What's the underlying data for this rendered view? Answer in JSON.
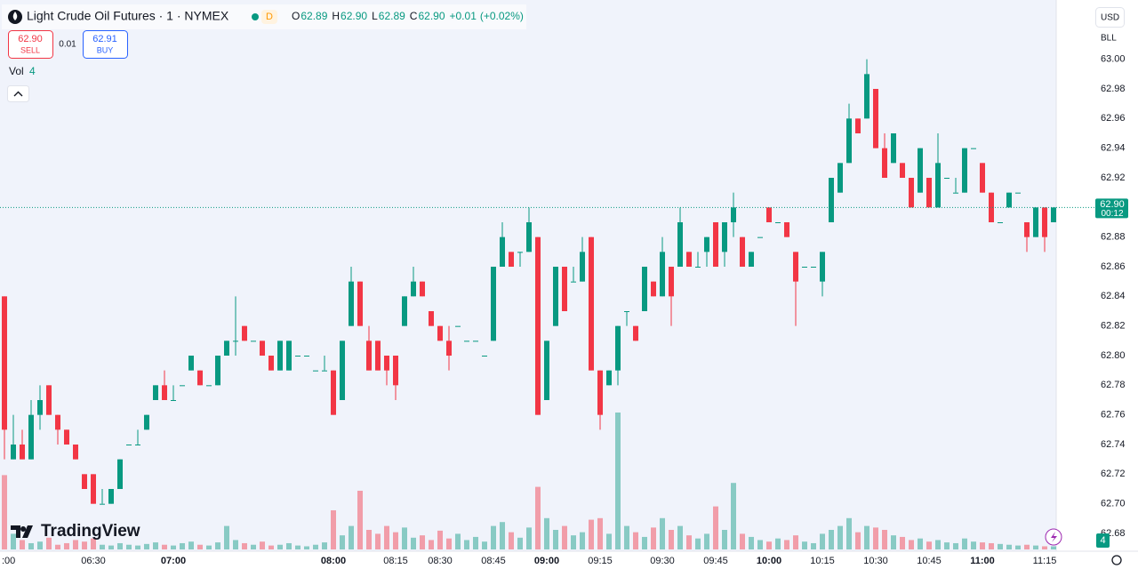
{
  "header": {
    "symbol": "Light Crude Oil Futures · 1 · NYMEX",
    "badge": "D",
    "ohlc": [
      {
        "label": "O",
        "value": "62.89"
      },
      {
        "label": "H",
        "value": "62.90"
      },
      {
        "label": "L",
        "value": "62.89"
      },
      {
        "label": "C",
        "value": "62.90"
      }
    ],
    "change": "+0.01",
    "change_pct": "(+0.02%)",
    "sell": {
      "price": "62.90",
      "label": "SELL"
    },
    "spread": "0.01",
    "buy": {
      "price": "62.91",
      "label": "BUY"
    },
    "currency": "USD",
    "unit": "BLL",
    "logo": "TradingView"
  },
  "chart_data": {
    "type": "candlestick",
    "categories": [
      ":00",
      null,
      null,
      null,
      null,
      null,
      null,
      null,
      null,
      null,
      "06:30",
      null,
      null,
      null,
      null,
      null,
      null,
      null,
      null,
      "07:00",
      null,
      null,
      null,
      null,
      null,
      null,
      null,
      null,
      null,
      null,
      null,
      null,
      null,
      null,
      null,
      null,
      null,
      "08:00",
      null,
      null,
      null,
      null,
      null,
      null,
      "08:15",
      null,
      null,
      null,
      null,
      "08:30",
      null,
      null,
      null,
      null,
      null,
      "08:45",
      null,
      null,
      null,
      null,
      null,
      "09:00",
      null,
      null,
      null,
      null,
      null,
      "09:15",
      null,
      null,
      null,
      null,
      null,
      null,
      "09:30",
      null,
      null,
      null,
      null,
      null,
      "09:45",
      null,
      null,
      null,
      null,
      null,
      "10:00",
      null,
      null,
      null,
      null,
      null,
      "10:15",
      null,
      null,
      null,
      null,
      null,
      "10:30",
      null,
      null,
      null,
      null,
      null,
      "10:45",
      null,
      null,
      null,
      null,
      null,
      "11:00",
      null,
      null,
      null,
      null,
      null,
      null,
      "11:15",
      null
    ],
    "open": [
      62.84,
      62.73,
      62.74,
      62.73,
      62.76,
      62.78,
      62.76,
      62.75,
      62.74,
      62.72,
      62.72,
      62.7,
      62.7,
      62.71,
      62.74,
      62.74,
      62.75,
      62.77,
      62.78,
      62.77,
      62.78,
      62.79,
      62.79,
      62.78,
      62.78,
      62.8,
      62.81,
      62.82,
      62.81,
      62.81,
      62.8,
      62.79,
      62.79,
      62.8,
      62.8,
      62.79,
      62.79,
      62.79,
      62.77,
      62.82,
      62.85,
      62.81,
      62.81,
      62.8,
      62.8,
      62.82,
      62.84,
      62.85,
      62.83,
      62.82,
      62.81,
      62.82,
      62.81,
      62.81,
      62.8,
      62.81,
      62.86,
      62.87,
      62.87,
      62.87,
      62.88,
      62.77,
      62.82,
      62.86,
      62.85,
      62.85,
      62.88,
      62.79,
      62.78,
      62.79,
      62.83,
      62.82,
      62.83,
      62.85,
      62.84,
      62.86,
      62.86,
      62.87,
      62.86,
      62.87,
      62.89,
      62.87,
      62.89,
      62.88,
      62.86,
      62.88,
      62.9,
      62.89,
      62.89,
      62.87,
      62.86,
      62.86,
      62.85,
      62.89,
      62.91,
      62.93,
      62.96,
      62.96,
      62.98,
      62.94,
      62.93,
      62.93,
      62.92,
      62.91,
      62.92,
      62.9,
      62.92,
      62.91,
      62.91,
      62.94,
      62.93,
      62.91,
      62.89,
      62.9,
      62.91,
      62.89,
      62.88,
      62.9,
      62.89
    ],
    "high": [
      62.84,
      62.76,
      62.75,
      62.77,
      62.78,
      62.78,
      62.76,
      62.75,
      62.74,
      62.72,
      62.72,
      62.71,
      62.71,
      62.73,
      62.74,
      62.75,
      62.76,
      62.78,
      62.79,
      62.78,
      62.78,
      62.8,
      62.79,
      62.78,
      62.8,
      62.81,
      62.84,
      62.82,
      62.81,
      62.81,
      62.8,
      62.81,
      62.81,
      62.8,
      62.8,
      62.79,
      62.8,
      62.79,
      62.81,
      62.86,
      62.85,
      62.82,
      62.81,
      62.8,
      62.8,
      62.84,
      62.86,
      62.85,
      62.83,
      62.82,
      62.82,
      62.82,
      62.81,
      62.81,
      62.8,
      62.86,
      62.89,
      62.87,
      62.87,
      62.9,
      62.88,
      62.81,
      62.86,
      62.86,
      62.86,
      62.88,
      62.88,
      62.79,
      62.79,
      62.82,
      62.83,
      62.82,
      62.86,
      62.85,
      62.88,
      62.86,
      62.9,
      62.87,
      62.87,
      62.88,
      62.89,
      62.89,
      62.91,
      62.88,
      62.87,
      62.88,
      62.9,
      62.89,
      62.89,
      62.87,
      62.86,
      62.86,
      62.87,
      62.92,
      62.93,
      62.97,
      62.96,
      63.0,
      62.98,
      62.95,
      62.95,
      62.93,
      62.92,
      62.94,
      62.92,
      62.95,
      62.92,
      62.92,
      62.94,
      62.94,
      62.93,
      62.91,
      62.89,
      62.91,
      62.91,
      62.89,
      62.9,
      62.9,
      62.9
    ],
    "low": [
      62.73,
      62.73,
      62.73,
      62.73,
      62.75,
      62.76,
      62.74,
      62.74,
      62.73,
      62.71,
      62.7,
      62.7,
      62.7,
      62.71,
      62.74,
      62.74,
      62.75,
      62.77,
      62.77,
      62.77,
      62.78,
      62.79,
      62.78,
      62.78,
      62.78,
      62.8,
      62.8,
      62.81,
      62.81,
      62.8,
      62.79,
      62.79,
      62.79,
      62.8,
      62.8,
      62.79,
      62.79,
      62.76,
      62.77,
      62.82,
      62.82,
      62.79,
      62.79,
      62.78,
      62.77,
      62.82,
      62.84,
      62.84,
      62.82,
      62.81,
      62.79,
      62.82,
      62.81,
      62.81,
      62.8,
      62.81,
      62.86,
      62.86,
      62.86,
      62.87,
      62.76,
      62.77,
      62.82,
      62.83,
      62.85,
      62.85,
      62.79,
      62.75,
      62.78,
      62.78,
      62.82,
      62.81,
      62.83,
      62.84,
      62.84,
      62.82,
      62.86,
      62.86,
      62.86,
      62.86,
      62.86,
      62.86,
      62.88,
      62.86,
      62.86,
      62.88,
      62.89,
      62.89,
      62.88,
      62.82,
      62.86,
      62.86,
      62.84,
      62.89,
      62.91,
      62.93,
      62.95,
      62.96,
      62.94,
      62.92,
      62.93,
      62.92,
      62.9,
      62.91,
      62.9,
      62.9,
      62.92,
      62.91,
      62.91,
      62.94,
      62.91,
      62.89,
      62.89,
      62.9,
      62.91,
      62.87,
      62.88,
      62.87,
      62.89
    ],
    "close": [
      62.75,
      62.74,
      62.73,
      62.76,
      62.77,
      62.76,
      62.75,
      62.74,
      62.73,
      62.71,
      62.7,
      62.7,
      62.71,
      62.73,
      62.74,
      62.74,
      62.76,
      62.78,
      62.77,
      62.77,
      62.78,
      62.8,
      62.78,
      62.78,
      62.8,
      62.81,
      62.81,
      62.81,
      62.81,
      62.8,
      62.79,
      62.81,
      62.81,
      62.8,
      62.8,
      62.79,
      62.79,
      62.76,
      62.81,
      62.85,
      62.82,
      62.79,
      62.79,
      62.79,
      62.78,
      62.84,
      62.85,
      62.84,
      62.82,
      62.81,
      62.8,
      62.82,
      62.81,
      62.81,
      62.8,
      62.86,
      62.88,
      62.86,
      62.87,
      62.89,
      62.76,
      62.81,
      62.86,
      62.83,
      62.85,
      62.87,
      62.79,
      62.76,
      62.79,
      62.82,
      62.83,
      62.81,
      62.86,
      62.84,
      62.87,
      62.84,
      62.89,
      62.86,
      62.86,
      62.88,
      62.86,
      62.89,
      62.9,
      62.86,
      62.87,
      62.88,
      62.89,
      62.89,
      62.88,
      62.85,
      62.86,
      62.86,
      62.87,
      62.92,
      62.93,
      62.96,
      62.95,
      62.99,
      62.94,
      62.92,
      62.95,
      62.92,
      62.9,
      62.94,
      62.9,
      62.93,
      62.92,
      62.91,
      62.94,
      62.94,
      62.91,
      62.89,
      62.89,
      62.91,
      62.91,
      62.88,
      62.9,
      62.88,
      62.9
    ],
    "volume": [
      95,
      20,
      12,
      8,
      10,
      15,
      6,
      8,
      12,
      10,
      14,
      6,
      5,
      8,
      6,
      5,
      7,
      9,
      6,
      5,
      8,
      10,
      6,
      5,
      9,
      30,
      12,
      8,
      6,
      10,
      5,
      6,
      8,
      5,
      4,
      6,
      9,
      50,
      18,
      30,
      75,
      25,
      20,
      30,
      22,
      28,
      15,
      18,
      12,
      24,
      14,
      20,
      12,
      16,
      10,
      30,
      35,
      22,
      15,
      28,
      80,
      40,
      25,
      30,
      18,
      22,
      38,
      40,
      20,
      175,
      30,
      22,
      16,
      28,
      40,
      25,
      30,
      18,
      14,
      20,
      55,
      25,
      85,
      20,
      16,
      12,
      10,
      14,
      12,
      18,
      10,
      8,
      20,
      25,
      30,
      40,
      22,
      30,
      28,
      25,
      18,
      16,
      12,
      14,
      10,
      12,
      9,
      8,
      14,
      10,
      9,
      8,
      7,
      6,
      5,
      6,
      5,
      4,
      4
    ],
    "up_color": "#089981",
    "down_color": "#f23645",
    "ylim": [
      62.668,
      63.04
    ],
    "yticks": [
      62.68,
      {
        "value": 62.7,
        "label": "62.70"
      },
      62.72,
      62.74,
      62.76,
      62.78,
      {
        "value": 62.8,
        "label": "62.80"
      },
      62.82,
      62.84,
      62.86,
      62.88,
      {
        "value": 62.9,
        "label": "62.90"
      },
      62.92,
      62.94,
      62.96,
      62.98,
      {
        "value": 63,
        "label": "63.00"
      }
    ],
    "volume_ylim": [
      0,
      200
    ],
    "volume_title": "Vol",
    "volume_last": 4,
    "last_price_label": "62.90",
    "countdown": "00:12"
  }
}
